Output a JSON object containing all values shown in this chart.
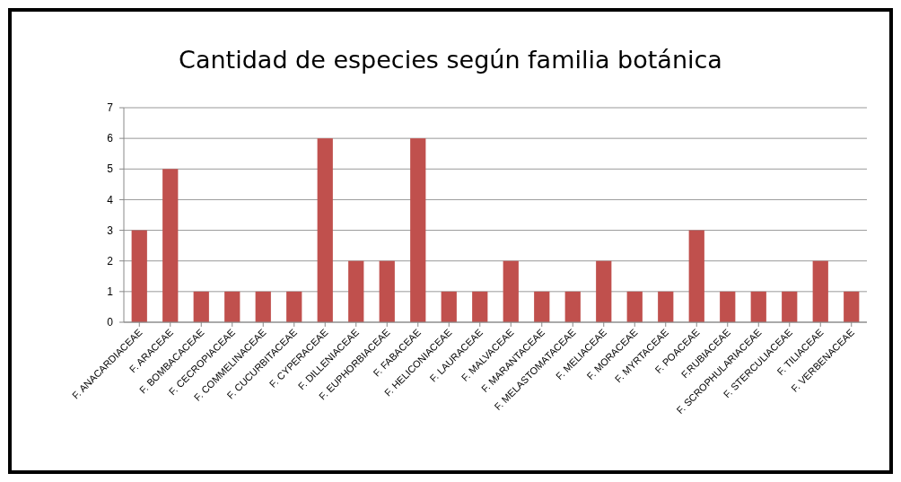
{
  "chart_data": {
    "type": "bar",
    "title": "Cantidad de especies según familia botánica",
    "categories": [
      "F. ANACARDIACEAE",
      "F. ARACEAE",
      "F. BOMBACACEAE",
      "F. CECROPIACEAE",
      "F. COMMELINACEAE",
      "F. CUCURBITACEAE",
      "F. CYPERACEAE",
      "F. DILLENIACEAE",
      "F. EUPHORBIACEAE",
      "F. FABACEAE",
      "F. HELICONIACEAE",
      "F. LAURACEAE",
      "F. MALVACEAE",
      "F. MARANTACEAE",
      "F. MELASTOMATACEAE",
      "F. MELIACEAE",
      "F. MORACEAE",
      "F. MYRTACEAE",
      "F. POACEAE",
      "F.RUBIACEAE",
      "F. SCROPHULARIACEAE",
      "F. STERCULIACEAE",
      "F. TILIACEAE",
      "F. VERBENACEAE"
    ],
    "values": [
      3,
      5,
      1,
      1,
      1,
      1,
      6,
      2,
      2,
      6,
      1,
      1,
      2,
      1,
      1,
      2,
      1,
      1,
      3,
      1,
      1,
      1,
      2,
      1
    ],
    "color": "#c0504d",
    "ylim": [
      0,
      7
    ],
    "yticks": [
      0,
      1,
      2,
      3,
      4,
      5,
      6,
      7
    ],
    "grid": "y"
  }
}
